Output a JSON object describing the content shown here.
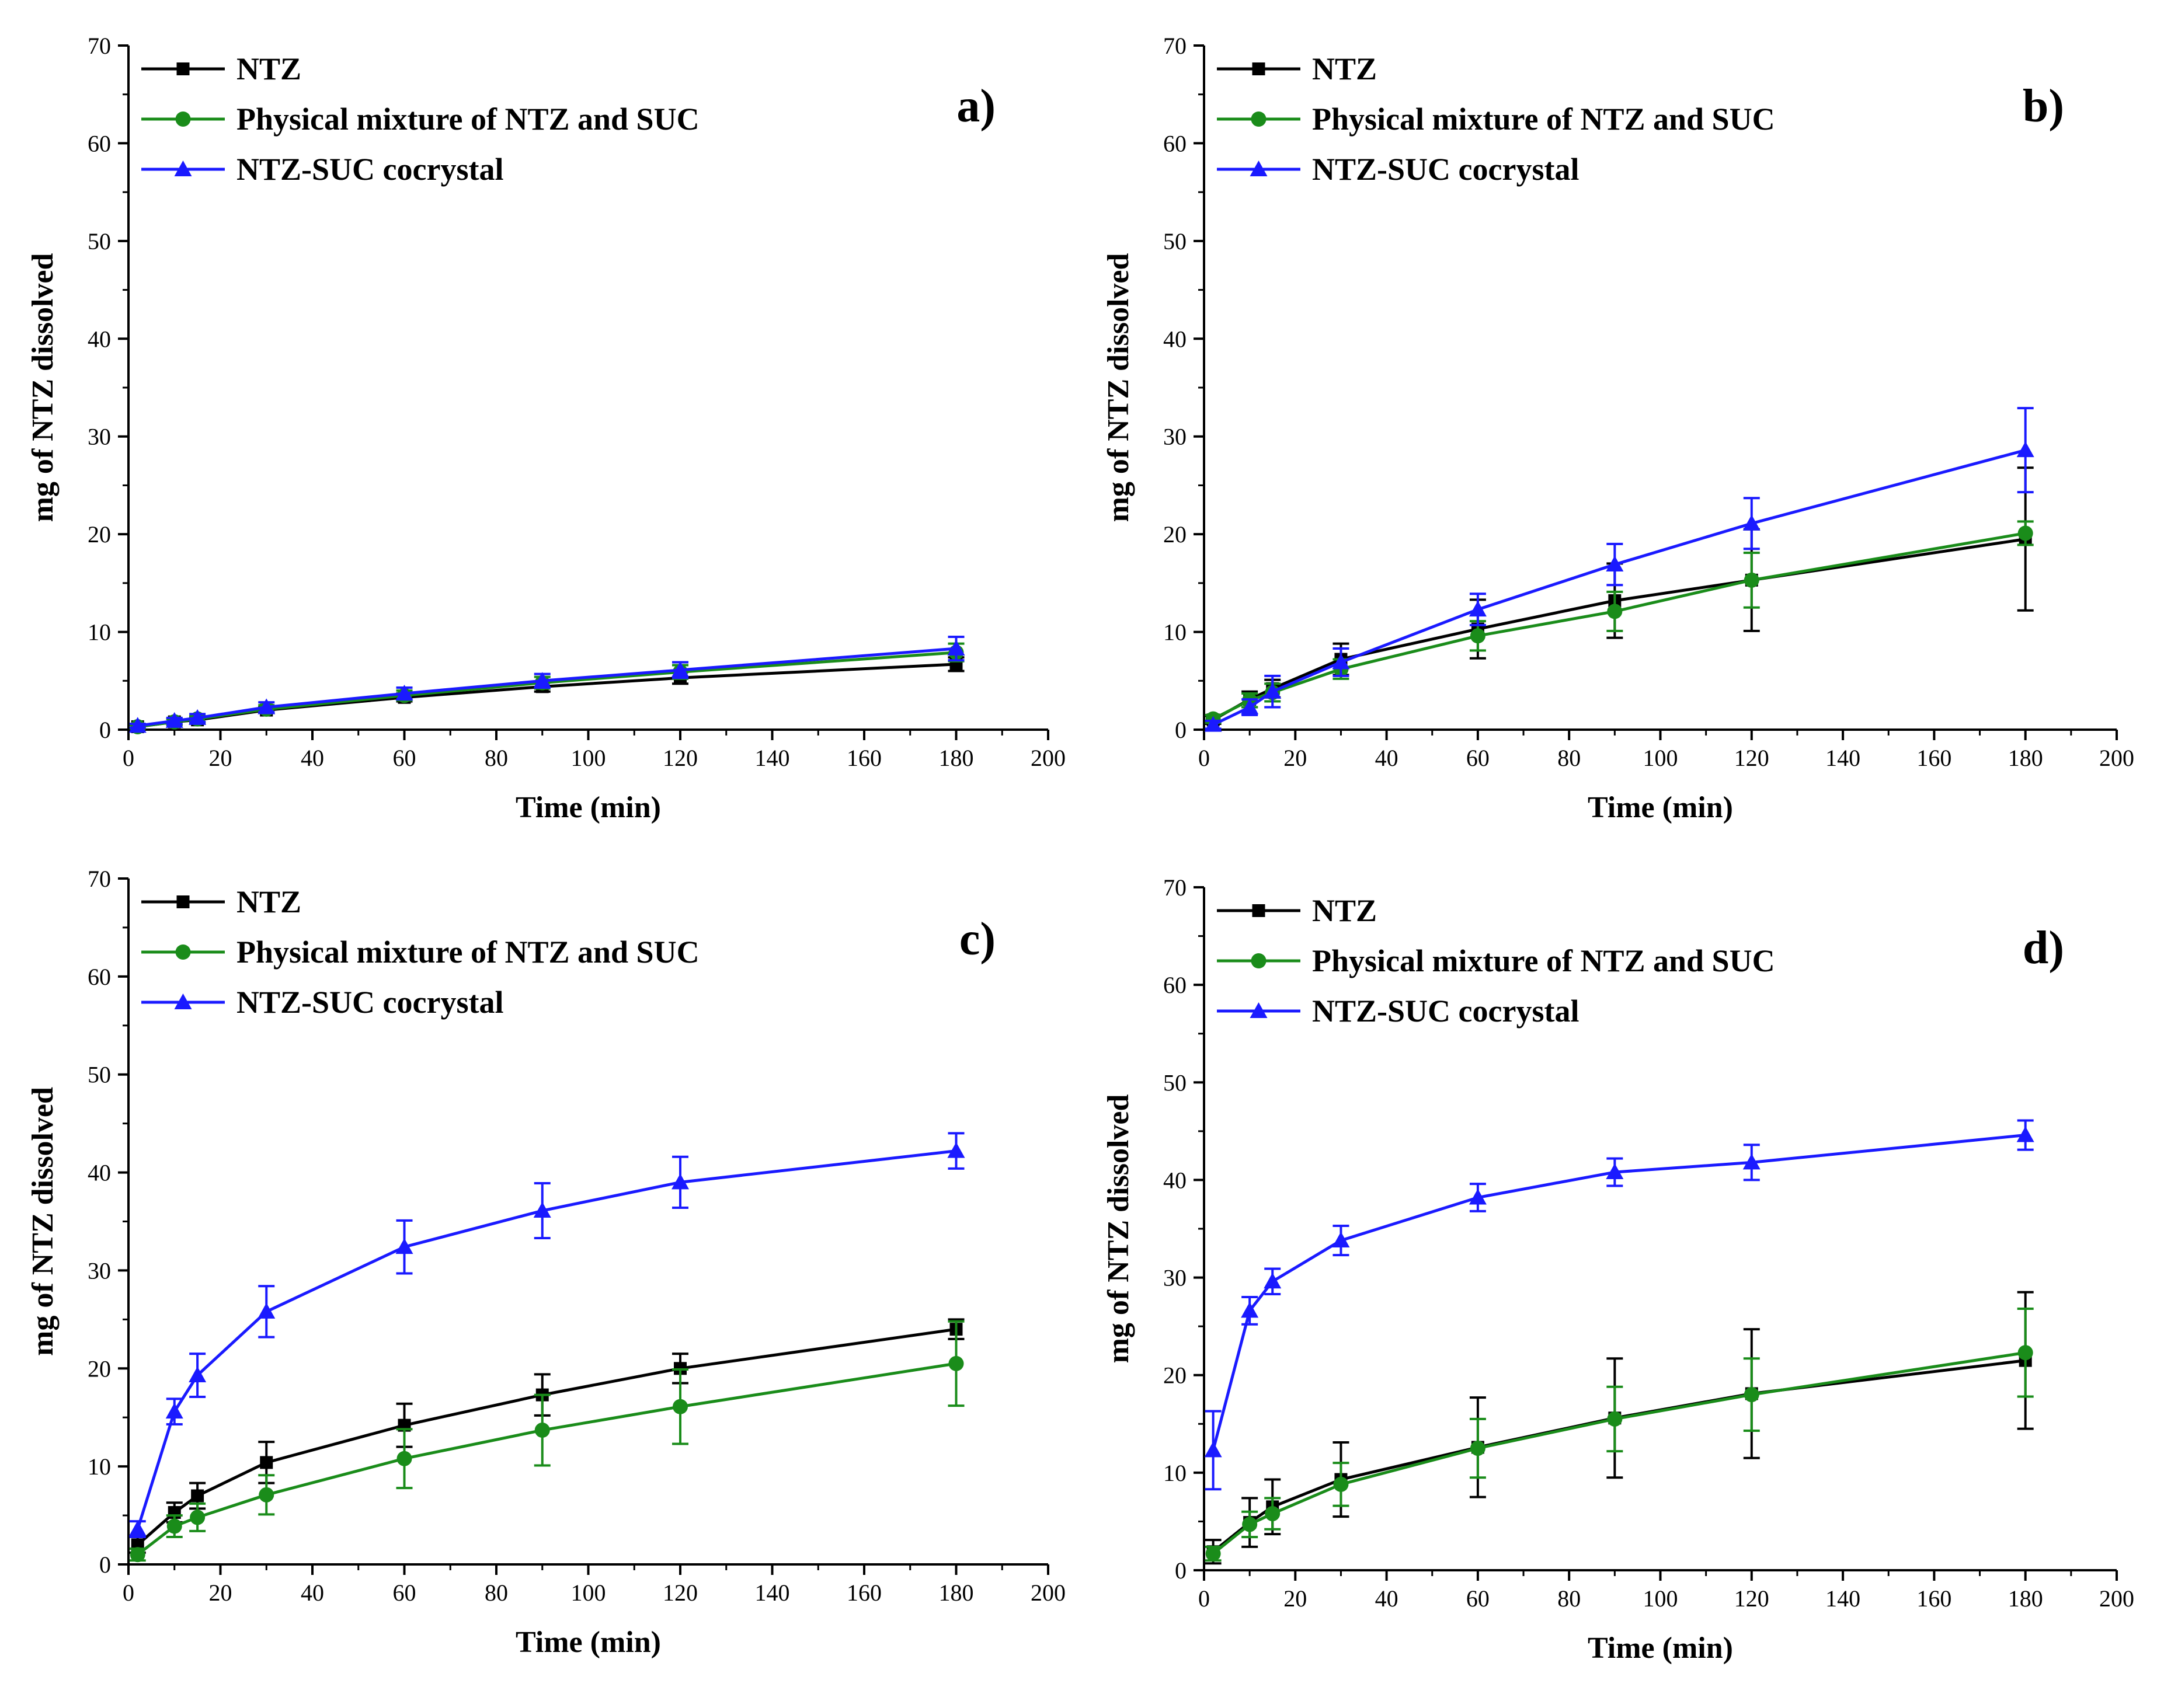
{
  "chart_data": [
    {
      "type": "line",
      "panel_label": "a)",
      "xlabel": "Time (min)",
      "ylabel": "mg of NTZ dissolved",
      "xlim": [
        0,
        200
      ],
      "ylim": [
        0,
        70
      ],
      "xticks": [
        0,
        20,
        40,
        60,
        80,
        100,
        120,
        140,
        160,
        180,
        200
      ],
      "yticks": [
        0,
        10,
        20,
        30,
        40,
        50,
        60,
        70
      ],
      "legend_position": "top-left",
      "series": [
        {
          "name": "NTZ",
          "color": "#000000",
          "marker": "square",
          "x": [
            2,
            10,
            15,
            30,
            60,
            90,
            120,
            180
          ],
          "y": [
            0.3,
            0.8,
            1.0,
            2.0,
            3.3,
            4.4,
            5.3,
            6.7
          ],
          "err": [
            0.2,
            0.3,
            0.3,
            0.3,
            0.4,
            0.5,
            0.6,
            0.7
          ]
        },
        {
          "name": "Physical mixture of NTZ and SUC",
          "color": "#1a8c1a",
          "marker": "circle",
          "x": [
            2,
            10,
            15,
            30,
            60,
            90,
            120,
            180
          ],
          "y": [
            0.3,
            0.8,
            1.1,
            2.1,
            3.5,
            4.8,
            5.9,
            7.9
          ],
          "err": [
            0.2,
            0.3,
            0.3,
            0.4,
            0.5,
            0.6,
            0.7,
            0.9
          ]
        },
        {
          "name": "NTZ-SUC cocrystal",
          "color": "#1a1aff",
          "marker": "triangle",
          "x": [
            2,
            10,
            15,
            30,
            60,
            90,
            120,
            180
          ],
          "y": [
            0.4,
            0.9,
            1.2,
            2.3,
            3.7,
            5.0,
            6.1,
            8.3
          ],
          "err": [
            0.2,
            0.3,
            0.4,
            0.5,
            0.6,
            0.7,
            0.8,
            1.2
          ]
        }
      ]
    },
    {
      "type": "line",
      "panel_label": "b)",
      "xlabel": "Time (min)",
      "ylabel": "mg of NTZ dissolved",
      "xlim": [
        0,
        200
      ],
      "ylim": [
        0,
        70
      ],
      "xticks": [
        0,
        20,
        40,
        60,
        80,
        100,
        120,
        140,
        160,
        180,
        200
      ],
      "yticks": [
        0,
        10,
        20,
        30,
        40,
        50,
        60,
        70
      ],
      "legend_position": "top-left",
      "series": [
        {
          "name": "NTZ",
          "color": "#000000",
          "marker": "square",
          "x": [
            2,
            10,
            15,
            30,
            60,
            90,
            120,
            180
          ],
          "y": [
            1.0,
            3.1,
            4.2,
            7.2,
            10.3,
            13.2,
            15.3,
            19.5
          ],
          "err": [
            0.4,
            0.8,
            0.9,
            1.6,
            3.0,
            3.8,
            5.2,
            7.3
          ]
        },
        {
          "name": "Physical mixture of NTZ and SUC",
          "color": "#1a8c1a",
          "marker": "circle",
          "x": [
            2,
            10,
            15,
            30,
            60,
            90,
            120,
            180
          ],
          "y": [
            1.1,
            3.0,
            3.8,
            6.2,
            9.6,
            12.1,
            15.3,
            20.1
          ],
          "err": [
            0.4,
            0.7,
            0.9,
            1.0,
            1.5,
            2.0,
            2.8,
            1.2
          ]
        },
        {
          "name": "NTZ-SUC cocrystal",
          "color": "#1a1aff",
          "marker": "triangle",
          "x": [
            2,
            10,
            15,
            30,
            60,
            90,
            120,
            180
          ],
          "y": [
            0.5,
            2.3,
            3.9,
            6.9,
            12.3,
            16.9,
            21.1,
            28.6
          ],
          "err": [
            0.4,
            0.8,
            1.6,
            1.4,
            1.6,
            2.1,
            2.6,
            4.3
          ]
        }
      ]
    },
    {
      "type": "line",
      "panel_label": "c)",
      "xlabel": "Time (min)",
      "ylabel": "mg of NTZ dissolved",
      "xlim": [
        0,
        200
      ],
      "ylim": [
        0,
        70
      ],
      "xticks": [
        0,
        20,
        40,
        60,
        80,
        100,
        120,
        140,
        160,
        180,
        200
      ],
      "yticks": [
        0,
        10,
        20,
        30,
        40,
        50,
        60,
        70
      ],
      "legend_position": "top-left",
      "series": [
        {
          "name": "NTZ",
          "color": "#000000",
          "marker": "square",
          "x": [
            2,
            10,
            15,
            30,
            60,
            90,
            120,
            180
          ],
          "y": [
            2.0,
            5.3,
            7.0,
            10.4,
            14.2,
            17.3,
            20.0,
            24.0
          ],
          "err": [
            0.8,
            1.0,
            1.3,
            2.1,
            2.2,
            2.1,
            1.5,
            1.0
          ]
        },
        {
          "name": "Physical mixture of NTZ and SUC",
          "color": "#1a8c1a",
          "marker": "circle",
          "x": [
            2,
            10,
            15,
            30,
            60,
            90,
            120,
            180
          ],
          "y": [
            1.0,
            3.9,
            4.8,
            7.1,
            10.8,
            13.7,
            16.1,
            20.5
          ],
          "err": [
            0.6,
            1.1,
            1.4,
            2.0,
            3.0,
            3.6,
            3.8,
            4.3
          ]
        },
        {
          "name": "NTZ-SUC cocrystal",
          "color": "#1a1aff",
          "marker": "triangle",
          "x": [
            2,
            10,
            15,
            30,
            60,
            90,
            120,
            180
          ],
          "y": [
            3.6,
            15.6,
            19.3,
            25.8,
            32.4,
            36.1,
            39.0,
            42.2
          ],
          "err": [
            0.8,
            1.3,
            2.2,
            2.6,
            2.7,
            2.8,
            2.6,
            1.8
          ]
        }
      ]
    },
    {
      "type": "line",
      "panel_label": "d)",
      "xlabel": "Time (min)",
      "ylabel": "mg of NTZ dissolved",
      "xlim": [
        0,
        200
      ],
      "ylim": [
        0,
        70
      ],
      "xticks": [
        0,
        20,
        40,
        60,
        80,
        100,
        120,
        140,
        160,
        180,
        200
      ],
      "yticks": [
        0,
        10,
        20,
        30,
        40,
        50,
        60,
        70
      ],
      "legend_position": "top-left",
      "series": [
        {
          "name": "NTZ",
          "color": "#000000",
          "marker": "square",
          "x": [
            2,
            10,
            15,
            30,
            60,
            90,
            120,
            180
          ],
          "y": [
            1.9,
            4.9,
            6.5,
            9.3,
            12.6,
            15.6,
            18.1,
            21.5
          ],
          "err": [
            1.2,
            2.5,
            2.8,
            3.8,
            5.1,
            6.1,
            6.6,
            7.0
          ]
        },
        {
          "name": "Physical mixture of NTZ and SUC",
          "color": "#1a8c1a",
          "marker": "circle",
          "x": [
            2,
            10,
            15,
            30,
            60,
            90,
            120,
            180
          ],
          "y": [
            1.7,
            4.7,
            5.8,
            8.8,
            12.5,
            15.5,
            18.0,
            22.3
          ],
          "err": [
            0.7,
            1.3,
            1.6,
            2.2,
            3.0,
            3.3,
            3.7,
            4.5
          ]
        },
        {
          "name": "NTZ-SUC cocrystal",
          "color": "#1a1aff",
          "marker": "triangle",
          "x": [
            2,
            10,
            15,
            30,
            60,
            90,
            120,
            180
          ],
          "y": [
            12.3,
            26.6,
            29.6,
            33.8,
            38.2,
            40.8,
            41.8,
            44.6
          ],
          "err": [
            4.0,
            1.4,
            1.3,
            1.5,
            1.4,
            1.4,
            1.8,
            1.5
          ]
        }
      ]
    }
  ]
}
